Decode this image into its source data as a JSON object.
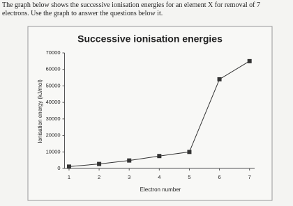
{
  "intro": {
    "line1": "The graph below shows the successive ionisation energies for an element X for removal of 7",
    "line2": "electrons. Use the graph to answer the questions below it."
  },
  "chart_data": {
    "type": "line",
    "title": "Successive ionisation energies",
    "x_label": "Electron number",
    "y_label": "Ionisation energy (kJ/mol)",
    "x": [
      1,
      2,
      3,
      4,
      5,
      6,
      7
    ],
    "series": [
      {
        "name": "Ionisation energy",
        "color": "#333333",
        "values": [
          1100,
          2700,
          4800,
          7500,
          10000,
          54000,
          65000
        ]
      }
    ],
    "xlim": [
      0.85,
      7.1
    ],
    "xticks": [
      1,
      2,
      3,
      4,
      5,
      6,
      7
    ],
    "ylim": [
      0,
      70000
    ],
    "yticks": [
      0,
      10000,
      20000,
      30000,
      40000,
      50000,
      60000,
      70000
    ],
    "grid": false
  }
}
